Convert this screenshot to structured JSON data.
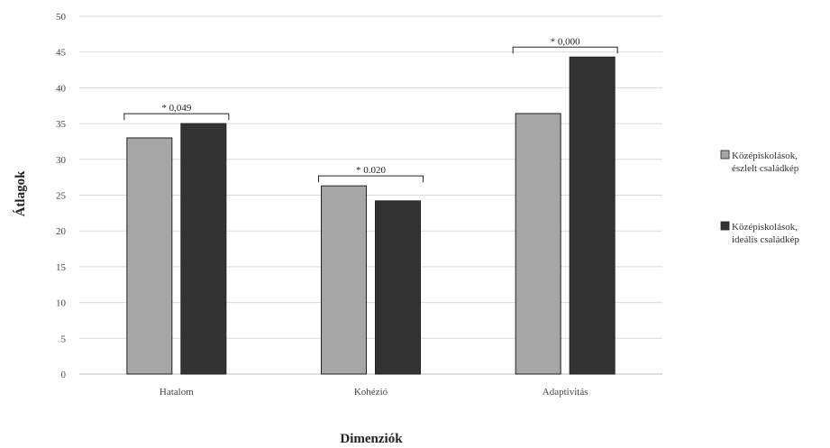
{
  "chart_data": {
    "type": "bar",
    "xlabel": "Dimenziók",
    "ylabel": "Átlagok",
    "ylim": [
      0,
      50
    ],
    "yticks": [
      0,
      5,
      10,
      15,
      20,
      25,
      30,
      35,
      40,
      45,
      50
    ],
    "grid": true,
    "legend_position": "right",
    "categories": [
      "Hatalom",
      "Kohézió",
      "Adaptivitás"
    ],
    "series": [
      {
        "name_lines": [
          "Középiskolások,",
          "észlelt családkép"
        ],
        "color": "#a6a6a6",
        "values": [
          33,
          26.3,
          36.4
        ]
      },
      {
        "name_lines": [
          "Középiskolások,",
          "ideális családkép"
        ],
        "color": "#333333",
        "values": [
          35,
          24.2,
          44.3
        ]
      }
    ],
    "annotations": [
      "* 0,049",
      "* 0.020",
      "* 0,000"
    ]
  }
}
